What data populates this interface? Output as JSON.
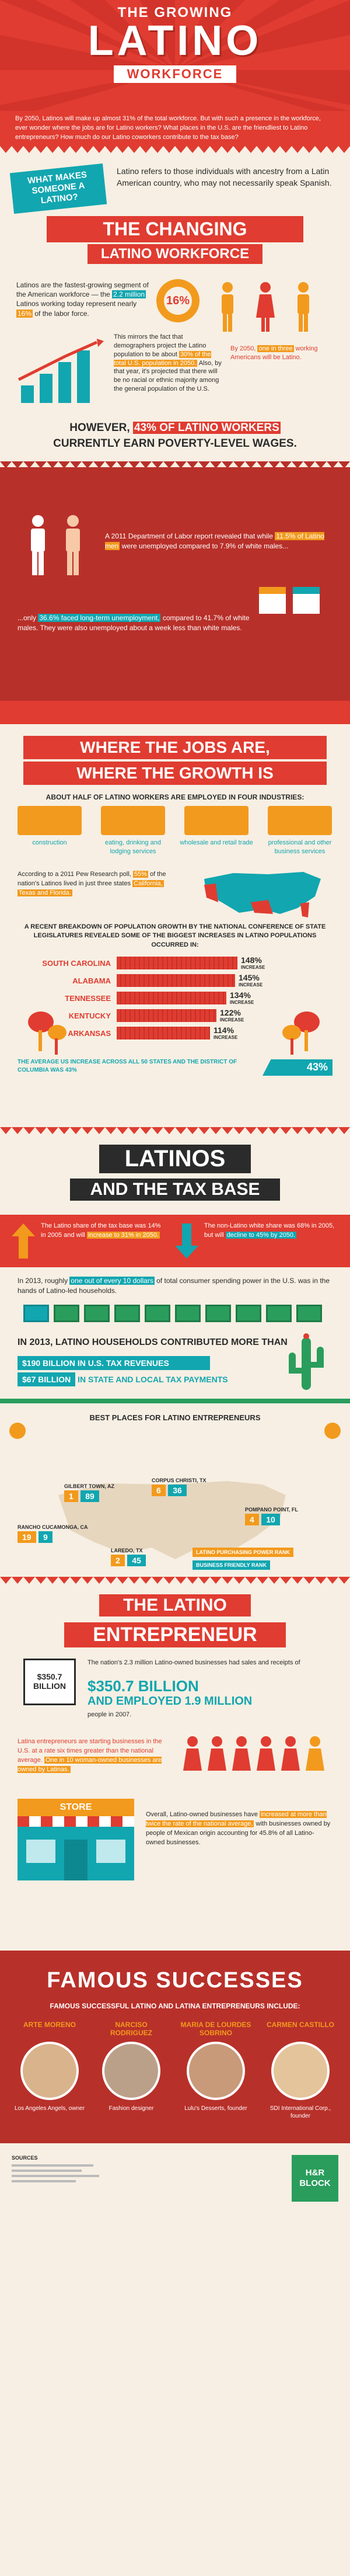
{
  "header": {
    "line1": "THE GROWING",
    "line2": "LATINO",
    "line3": "WORKFORCE",
    "intro": "By 2050, Latinos will make up almost 31% of the total workforce. But with such a presence in the workforce, ever wonder where the jobs are for Latino workers? What places in the U.S. are the friendliest to Latino entrepreneurs? How much do our Latino coworkers contribute to the tax base?"
  },
  "what_makes": {
    "tag": "WHAT MAKES SOMEONE A LATINO?",
    "text": "Latino refers to those individuals with ancestry from a Latin American country, who may not necessarily speak Spanish."
  },
  "changing": {
    "title_line1": "THE CHANGING",
    "title_line2": "LATINO WORKFORCE",
    "text1_a": "Latinos are the fastest-growing segment of the American workforce — the",
    "text1_hl": "2.2 million",
    "text1_b": "Latinos working today represent nearly",
    "text1_hl2": "16%",
    "text1_c": "of the labor force.",
    "pct_16": "16%",
    "text2_a": "This mirrors the fact that demographers project the Latino population to be about",
    "text2_hl": "30% of the total U.S. population in 2050.",
    "text2_b": "Also, by that year, it's projected that there will be no racial or ethnic majority among the general population of the U.S.",
    "one_in_three_a": "By 2050,",
    "one_in_three_hl": "one in three",
    "one_in_three_b": "working Americans will be Latino."
  },
  "poverty": {
    "text_a": "HOWEVER,",
    "text_hl": "43% OF LATINO WORKERS",
    "text_b": "CURRENTLY EARN POVERTY-LEVEL WAGES.",
    "dept_a": "A 2011 Department of Labor report revealed that while",
    "dept_hl": "11.5% of Latino men",
    "dept_b": "were unemployed compared to",
    "dept_hl2": "7.9% of white males...",
    "only_a": "...only",
    "only_hl": "36.6% faced long-term unemployment,",
    "only_b": "compared to 41.7% of white males. They were also unemployed about a week less than white males."
  },
  "jobs": {
    "title_line1": "WHERE THE JOBS ARE,",
    "title_line2": "WHERE THE GROWTH IS",
    "subtitle": "ABOUT HALF OF LATINO WORKERS ARE EMPLOYED IN FOUR INDUSTRIES:",
    "industries": [
      {
        "label": "construction",
        "icon": "construction-icon"
      },
      {
        "label": "eating, drinking and lodging services",
        "icon": "dining-icon"
      },
      {
        "label": "wholesale and retail trade",
        "icon": "store-icon"
      },
      {
        "label": "professional and other business services",
        "icon": "briefcase-icon"
      }
    ],
    "pew_a": "According to a 2011 Pew Research poll,",
    "pew_hl": "55%",
    "pew_b": "of the nation's Latinos lived in just three states",
    "pew_hl2": "California,",
    "pew_c": "Texas and Florida.",
    "ncsl": "A RECENT BREAKDOWN OF POPULATION GROWTH BY THE NATIONAL CONFERENCE OF STATE LEGISLATURES REVEALED SOME OF THE BIGGEST INCREASES IN LATINO POPULATIONS OCCURRED IN:",
    "increase_word": "INCREASE",
    "average_text": "THE AVERAGE US INCREASE ACROSS ALL 50 STATES AND THE DISTRICT OF COLUMBIA WAS 43%",
    "average_value": "43%"
  },
  "chart_data": {
    "type": "bar",
    "categories": [
      "SOUTH CAROLINA",
      "ALABAMA",
      "TENNESSEE",
      "KENTUCKY",
      "ARKANSAS"
    ],
    "values": [
      148,
      145,
      134,
      122,
      114
    ],
    "value_labels": [
      "148%",
      "145%",
      "134%",
      "122%",
      "114%"
    ],
    "xlim": [
      0,
      150
    ]
  },
  "tax": {
    "title_line1": "LATINOS",
    "title_line2": "AND THE TAX BASE",
    "share_a": "The Latino share of the tax base was 14% in 2005 and will",
    "share_hl": "increase to 31% in 2050.",
    "share_b": "The non-Latino white share was 68% in 2005, but will",
    "share_hl2": "decline to 45% by 2050.",
    "spend_a": "In 2013, roughly",
    "spend_hl": "one out of every 10 dollars",
    "spend_b": "of total consumer spending power in the U.S. was in the hands of Latino-led households.",
    "contrib_title": "IN 2013, LATINO HOUSEHOLDS CONTRIBUTED MORE THAN",
    "contrib1_hl": "$190 BILLION IN U.S. TAX REVENUES",
    "contrib2_hl": "$67 BILLION",
    "contrib2_b": "IN STATE AND LOCAL TAX PAYMENTS"
  },
  "best_places": {
    "title": "BEST PLACES FOR LATINO ENTREPRENEURS",
    "places": [
      {
        "name": "GILBERT TOWN, AZ",
        "rank_a": "1",
        "rank_b": "89"
      },
      {
        "name": "CORPUS CHRISTI, TX",
        "rank_a": "6",
        "rank_b": "36"
      },
      {
        "name": "POMPANO POINT, FL",
        "rank_a": "4",
        "rank_b": "10"
      },
      {
        "name": "RANCHO CUCAMONGA, CA",
        "rank_a": "19",
        "rank_b": "9"
      },
      {
        "name": "LAREDO, TX",
        "rank_a": "2",
        "rank_b": "45"
      }
    ],
    "legend1": "LATINO PURCHASING POWER RANK",
    "legend2": "BUSINESS FRIENDLY RANK"
  },
  "entrepreneur": {
    "title_line1": "THE LATINO",
    "title_line2": "ENTREPRENEUR",
    "money_sign": "$350.7 BILLION",
    "nation_a": "The nation's 2.3 million Latino-owned businesses had sales and receipts of",
    "big1": "$350.7 BILLION",
    "big2": "AND EMPLOYED 1.9 MILLION",
    "nation_b": "people in 2007.",
    "starting_a": "Latina entrepreneurs are starting businesses in the U.S. at a rate six times greater than the national average.",
    "starting_hl": "One in 10 woman-owned businesses are owned by Latinas.",
    "store_label": "STORE",
    "overall_a": "Overall, Latino-owned businesses have",
    "overall_hl": "increased at more than twice the rate of the national average,",
    "overall_b": "with businesses owned by people of Mexican origin accounting for 45.8% of all Latino-owned businesses."
  },
  "famous": {
    "title": "FAMOUS SUCCESSES",
    "subtitle": "FAMOUS SUCCESSFUL LATINO AND LATINA ENTREPRENEURS INCLUDE:",
    "people": [
      {
        "name": "ARTE MORENO",
        "desc": "Los Angeles Angels, owner"
      },
      {
        "name": "NARCISO RODRIGUEZ",
        "desc": "Fashion designer"
      },
      {
        "name": "MARIA DE LOURDES SOBRINO",
        "desc": "Lulu's Desserts, founder"
      },
      {
        "name": "CARMEN CASTILLO",
        "desc": "SDI International Corp., founder"
      }
    ]
  },
  "footer": {
    "sources_label": "SOURCES",
    "brand": "H&R BLOCK"
  }
}
